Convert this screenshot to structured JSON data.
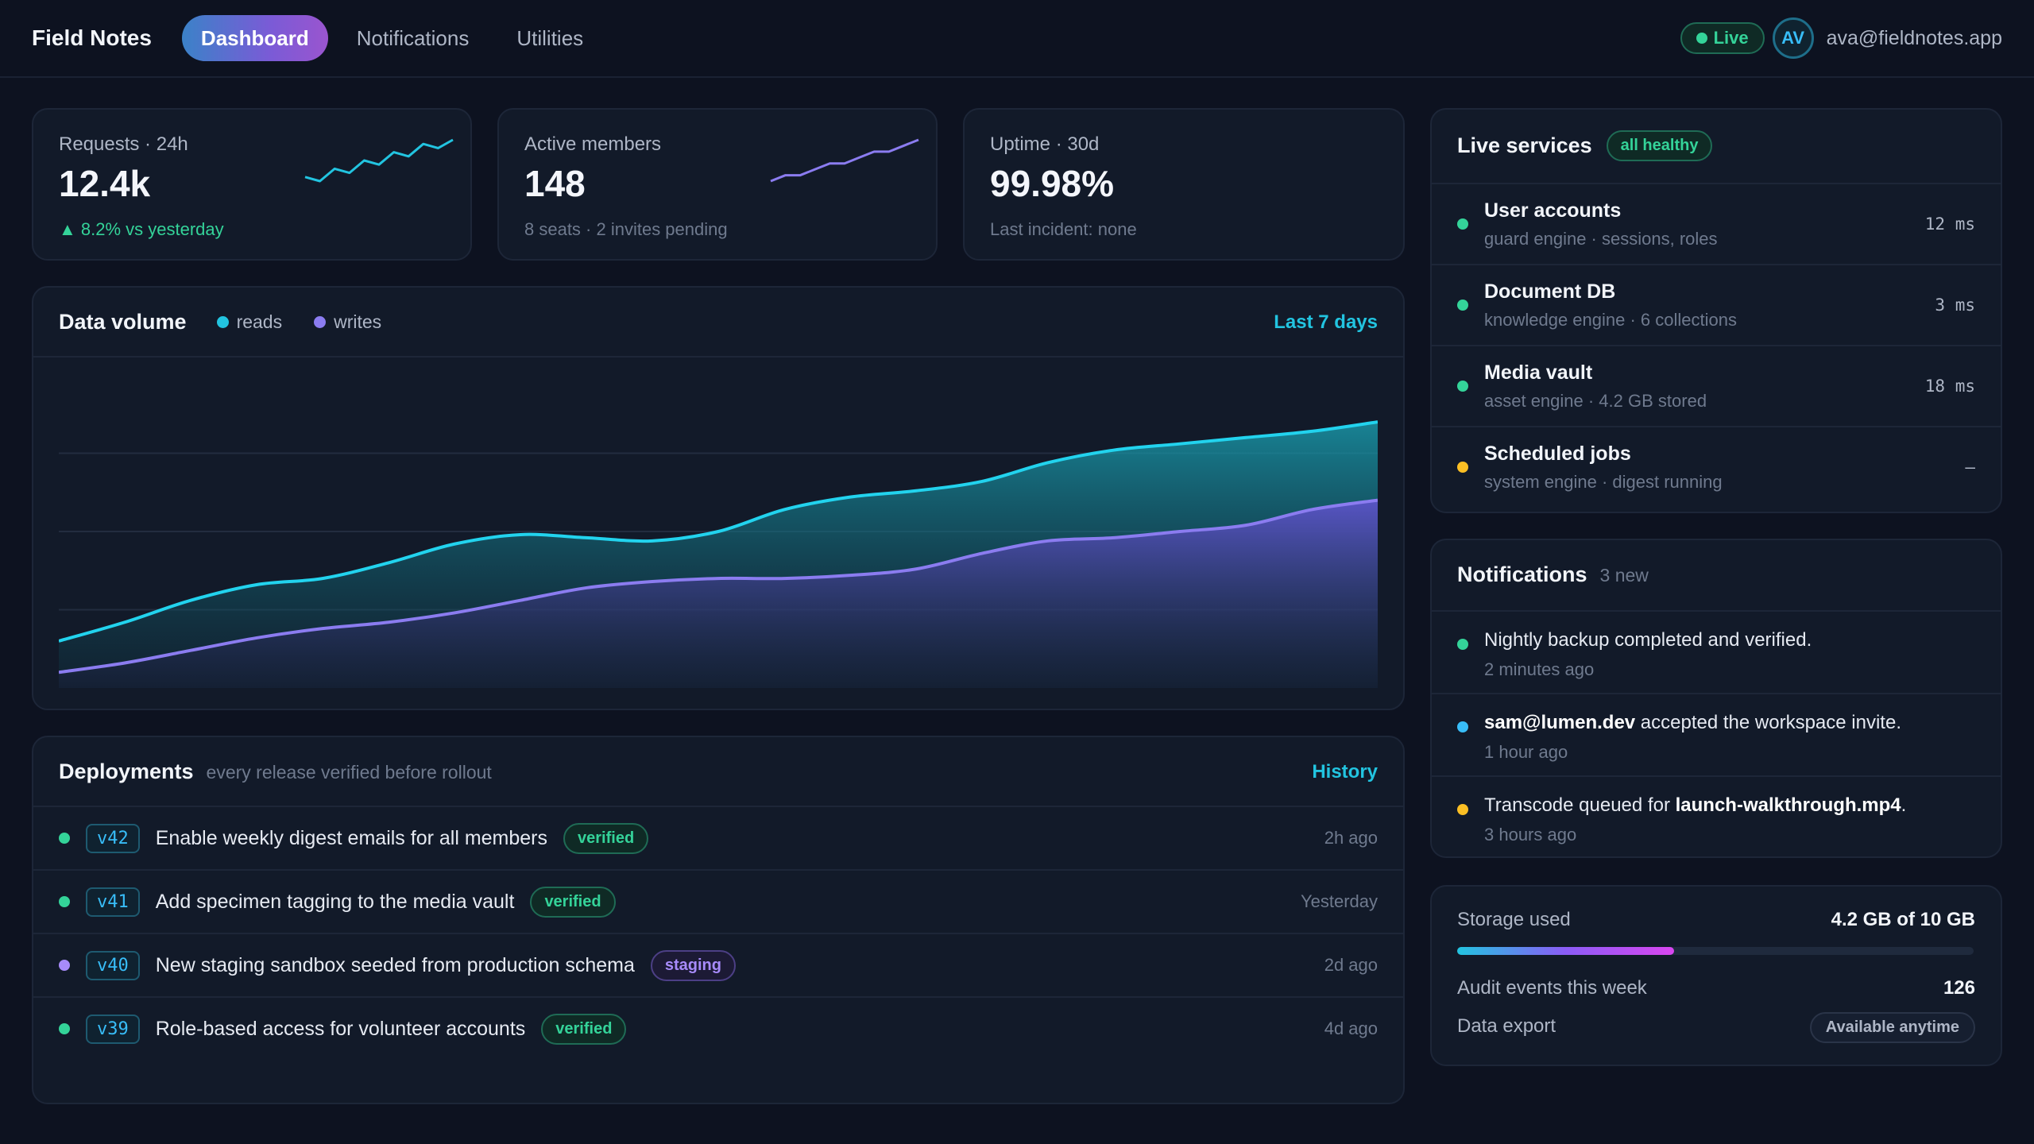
{
  "brand": "Field Notes",
  "nav": {
    "tabs": [
      {
        "label": "Dashboard",
        "active": true
      },
      {
        "label": "Notifications",
        "active": false
      },
      {
        "label": "Utilities",
        "active": false
      }
    ]
  },
  "header": {
    "live_label": "Live",
    "avatar_initials": "AV",
    "user_email": "ava@fieldnotes.app"
  },
  "stats": [
    {
      "label": "Requests · 24h",
      "value": "12.4k",
      "sub": "▲ 8.2% vs yesterday",
      "trend": "up",
      "spark": [
        4,
        3,
        6,
        5,
        8,
        7,
        10,
        9,
        12,
        11,
        13
      ]
    },
    {
      "label": "Active members",
      "value": "148",
      "sub": "8 seats · 2 invites pending",
      "trend": "flat",
      "spark": [
        2,
        3,
        3,
        4,
        5,
        5,
        6,
        7,
        7,
        8,
        9
      ]
    },
    {
      "label": "Uptime · 30d",
      "value": "99.98%",
      "sub": "Last incident: none",
      "trend": "flat"
    }
  ],
  "data_volume": {
    "title": "Data volume",
    "legend": [
      {
        "name": "reads",
        "color": "#22c4e0"
      },
      {
        "name": "writes",
        "color": "#8b7cf0"
      }
    ],
    "range_link": "Last 7 days"
  },
  "chart_data": {
    "type": "area",
    "title": "Data volume",
    "x": [
      0,
      1,
      2,
      3,
      4,
      5,
      6,
      7,
      8,
      9,
      10,
      11,
      12,
      13,
      14,
      15,
      16,
      17,
      18,
      19,
      20
    ],
    "series": [
      {
        "name": "reads",
        "values": [
          15,
          21,
          28,
          33,
          35,
          40,
          46,
          49,
          48,
          47,
          50,
          57,
          61,
          63,
          66,
          72,
          76,
          78,
          80,
          82,
          85
        ]
      },
      {
        "name": "writes",
        "values": [
          5,
          8,
          12,
          16,
          19,
          21,
          24,
          28,
          32,
          34,
          35,
          35,
          36,
          38,
          43,
          47,
          48,
          50,
          52,
          57,
          60
        ]
      }
    ],
    "ylim": [
      0,
      100
    ],
    "grid": true
  },
  "deployments": {
    "title": "Deployments",
    "subtitle": "every release verified before rollout",
    "history_link": "History",
    "rows": [
      {
        "version": "v42",
        "title": "Enable weekly digest emails for all members",
        "badge": "verified",
        "time": "2h ago",
        "dot": "#34d399"
      },
      {
        "version": "v41",
        "title": "Add specimen tagging to the media vault",
        "badge": "verified",
        "time": "Yesterday",
        "dot": "#34d399"
      },
      {
        "version": "v40",
        "title": "New staging sandbox seeded from production schema",
        "badge": "staging",
        "time": "2d ago",
        "dot": "#a78bfa"
      },
      {
        "version": "v39",
        "title": "Role-based access for volunteer accounts",
        "badge": "verified",
        "time": "4d ago",
        "dot": "#34d399"
      }
    ]
  },
  "services": {
    "title": "Live services",
    "status_pill": "all healthy",
    "rows": [
      {
        "name": "User accounts",
        "desc": "guard engine · sessions, roles",
        "latency": "12 ms",
        "dot": "#34d399"
      },
      {
        "name": "Document DB",
        "desc": "knowledge engine · 6 collections",
        "latency": "3 ms",
        "dot": "#34d399"
      },
      {
        "name": "Media vault",
        "desc": "asset engine · 4.2 GB stored",
        "latency": "18 ms",
        "dot": "#34d399"
      },
      {
        "name": "Scheduled jobs",
        "desc": "system engine · digest running",
        "latency": "–",
        "dot": "#fbbf24"
      }
    ]
  },
  "notifications": {
    "title": "Notifications",
    "count": "3 new",
    "items": [
      {
        "pre": "",
        "bold": "",
        "post": "Nightly backup completed and verified.",
        "time": "2 minutes ago",
        "dot": "#34d399"
      },
      {
        "pre": "",
        "bold": "sam@lumen.dev",
        "post": " accepted the workspace invite.",
        "time": "1 hour ago",
        "dot": "#38bdf8"
      },
      {
        "pre": "Transcode queued for ",
        "bold": "launch-walkthrough.mp4",
        "post": ".",
        "time": "3 hours ago",
        "dot": "#fbbf24"
      }
    ]
  },
  "storage": {
    "label": "Storage used",
    "value": "4.2 GB of 10 GB",
    "fraction": 0.42,
    "audit_label": "Audit events this week",
    "audit_value": "126",
    "export_label": "Data export",
    "export_value": "Available anytime"
  }
}
